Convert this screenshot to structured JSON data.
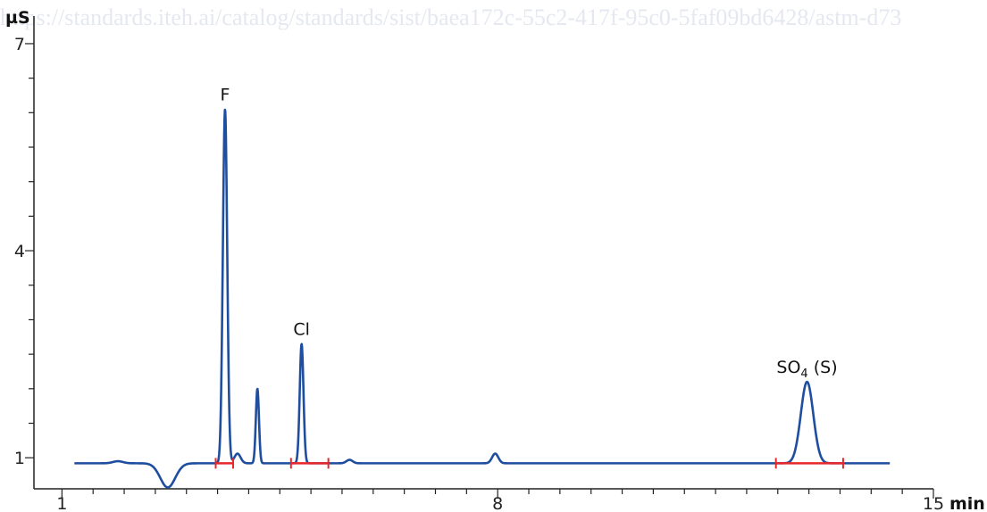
{
  "watermark": "https://standards.iteh.ai/catalog/standards/sist/baea172c-55c2-417f-95c0-5faf09bd6428/astm-d73",
  "chart_data": {
    "type": "line",
    "xlabel": "min",
    "ylabel": "µS",
    "xlim": [
      0.55,
      15
    ],
    "ylim": [
      0.55,
      7.4
    ],
    "x_tick_labels": [
      "1",
      "8",
      "15"
    ],
    "x_tick_values": [
      1,
      8,
      15
    ],
    "y_tick_labels": [
      "1",
      "4",
      "7"
    ],
    "y_tick_values": [
      1,
      4,
      7
    ],
    "baseline": 0.92,
    "line_color": "#1f4e9e",
    "integration_color": "#e8272a",
    "peaks": [
      {
        "name": "F",
        "x": 3.62,
        "y": 6.05
      },
      {
        "name": "Cl",
        "x": 4.85,
        "y": 2.65
      },
      {
        "name": "SO4 (S)",
        "label_main": "SO",
        "label_sub": "4",
        "label_rest": " (S)",
        "x": 12.97,
        "y": 2.1
      }
    ],
    "integration_marks": [
      [
        3.47,
        3.75
      ],
      [
        4.68,
        5.28
      ],
      [
        12.47,
        13.55
      ]
    ],
    "features": [
      {
        "kind": "dip",
        "x": 2.7,
        "y": 0.57,
        "width": 0.12
      },
      {
        "kind": "bump",
        "x": 1.9,
        "y": 0.95,
        "width": 0.08
      },
      {
        "kind": "bump",
        "x": 3.82,
        "y": 1.06,
        "width": 0.05
      },
      {
        "kind": "peak",
        "x": 4.14,
        "y": 2.0,
        "width": 0.025
      },
      {
        "kind": "bump",
        "x": 5.62,
        "y": 0.97,
        "width": 0.05
      },
      {
        "kind": "bump",
        "x": 7.96,
        "y": 1.06,
        "width": 0.05
      }
    ]
  }
}
